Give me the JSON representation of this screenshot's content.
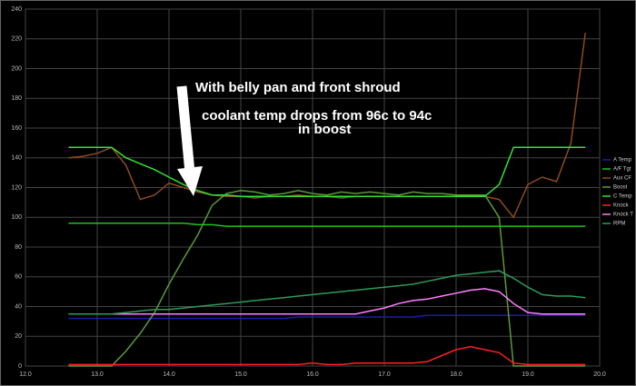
{
  "chart_data": {
    "type": "line",
    "annotations": [
      "With belly pan and front shroud",
      "coolant temp drops from 96c to 94c",
      "in boost"
    ],
    "x": [
      12.6,
      12.8,
      13.0,
      13.2,
      13.4,
      13.6,
      13.8,
      14.0,
      14.2,
      14.4,
      14.6,
      14.8,
      15.0,
      15.2,
      15.4,
      15.6,
      15.8,
      16.0,
      16.2,
      16.4,
      16.6,
      16.8,
      17.0,
      17.2,
      17.4,
      17.6,
      17.8,
      18.0,
      18.2,
      18.4,
      18.6,
      18.8,
      19.0,
      19.2,
      19.4,
      19.6,
      19.8
    ],
    "series": [
      {
        "name": "A Temp",
        "color": "#1c1ca8",
        "values": [
          32,
          32,
          32,
          32,
          32,
          32,
          32,
          32,
          32,
          32,
          32,
          32,
          32,
          32,
          32,
          32,
          33,
          33,
          33,
          33,
          33,
          33,
          33,
          33,
          33,
          34,
          34,
          34,
          34,
          34,
          34,
          34,
          34,
          34,
          34,
          34,
          34
        ]
      },
      {
        "name": "A/F Tgt",
        "color": "#22c022",
        "values": [
          96,
          96,
          96,
          96,
          96,
          96,
          96,
          96,
          96,
          95,
          95,
          94,
          94,
          94,
          94,
          94,
          94,
          94,
          94,
          94,
          94,
          94,
          94,
          94,
          94,
          94,
          94,
          94,
          94,
          94,
          94,
          94,
          94,
          94,
          94,
          94,
          94
        ]
      },
      {
        "name": "Aux CF",
        "color": "#8b4a1e",
        "values": [
          140,
          141,
          143,
          147,
          135,
          112,
          115,
          123,
          120,
          117,
          115,
          114,
          114,
          113,
          114,
          114,
          115,
          114,
          114,
          113,
          114,
          114,
          114,
          114,
          114,
          114,
          114,
          114,
          114,
          114,
          112,
          100,
          122,
          127,
          124,
          150,
          224
        ]
      },
      {
        "name": "Boost",
        "color": "#5a9a3a",
        "values": [
          0,
          0,
          0,
          0,
          10,
          22,
          36,
          55,
          72,
          88,
          108,
          116,
          118,
          117,
          115,
          116,
          118,
          116,
          115,
          117,
          116,
          117,
          116,
          115,
          117,
          116,
          116,
          115,
          115,
          115,
          100,
          0,
          0,
          0,
          0,
          0,
          0
        ]
      },
      {
        "name": "C Temp",
        "color": "#33e033",
        "values": [
          147,
          147,
          147,
          147,
          140,
          136,
          132,
          127,
          122,
          118,
          115,
          115,
          114,
          114,
          114,
          114,
          114,
          114,
          114,
          114,
          114,
          114,
          114,
          114,
          114,
          114,
          114,
          114,
          114,
          114,
          122,
          147,
          147,
          147,
          147,
          147,
          147
        ]
      },
      {
        "name": "Knock",
        "color": "#ff2020",
        "values": [
          1,
          1,
          1,
          1,
          1,
          1,
          1,
          1,
          1,
          1,
          1,
          1,
          1,
          1,
          1,
          1,
          1,
          2,
          1,
          1,
          2,
          2,
          2,
          2,
          2,
          3,
          7,
          11,
          13,
          11,
          9,
          2,
          1,
          1,
          1,
          1,
          1
        ]
      },
      {
        "name": "Knock T",
        "color": "#ff80ff",
        "values": [
          35,
          35,
          35,
          35,
          35,
          35,
          35,
          35,
          35,
          35,
          35,
          35,
          35,
          35,
          35,
          35,
          35,
          35,
          35,
          35,
          35,
          37,
          39,
          42,
          44,
          45,
          47,
          49,
          51,
          52,
          50,
          42,
          36,
          35,
          35,
          35,
          35
        ]
      },
      {
        "name": "RPM",
        "color": "#2e9a5a",
        "values": [
          35,
          35,
          35,
          35,
          36,
          37,
          38,
          38,
          39,
          40,
          41,
          42,
          43,
          44,
          45,
          46,
          47,
          48,
          49,
          50,
          51,
          52,
          53,
          54,
          55,
          57,
          59,
          61,
          62,
          63,
          64,
          59,
          53,
          48,
          47,
          47,
          46
        ]
      }
    ],
    "xlim": [
      12,
      20
    ],
    "xticks": [
      {
        "value": 12,
        "label": "12.0"
      },
      {
        "value": 13,
        "label": "13.0"
      },
      {
        "value": 14,
        "label": "14.0"
      },
      {
        "value": 15,
        "label": "15.0"
      },
      {
        "value": 16,
        "label": "16.0"
      },
      {
        "value": 17,
        "label": "17.0"
      },
      {
        "value": 18,
        "label": "18.0"
      },
      {
        "value": 19,
        "label": "19.0"
      },
      {
        "value": 20,
        "label": "20.0"
      }
    ],
    "ylim": [
      0,
      240
    ],
    "yticks": [
      0,
      20,
      40,
      60,
      80,
      100,
      120,
      140,
      160,
      180,
      200,
      220,
      240
    ],
    "grid": true
  }
}
